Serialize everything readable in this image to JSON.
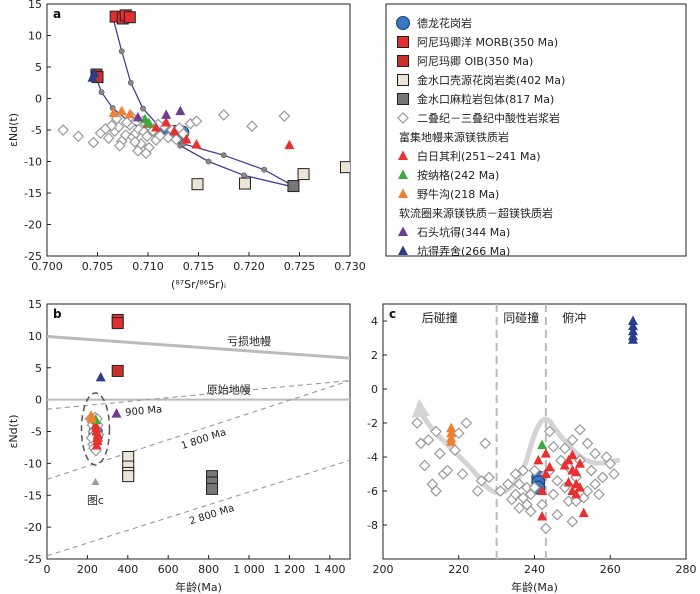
{
  "figure": {
    "colors": {
      "granite": "#3b78c4",
      "morb": "#e03030",
      "oib": "#c83228",
      "jinshuikou_crust": "#ece4d4",
      "jinshuikou_xenolith": "#777777",
      "diamond": "#999999",
      "red": "#e83030",
      "green": "#3cac3c",
      "orange": "#f08030",
      "purple": "#6e3c96",
      "navy": "#2c3c8c",
      "curve": "#4a3f94",
      "curve_dot": "#8a8a8a",
      "mantle_line": "#bbbbbb",
      "arrow": "#d4d4d4"
    }
  },
  "legend": {
    "items": [
      {
        "marker": "circle",
        "color": "#3b78c4",
        "label": "德龙花岗岩"
      },
      {
        "marker": "square",
        "color": "#e03030",
        "label": "阿尼玛卿洋 MORB(350 Ma)"
      },
      {
        "marker": "square",
        "color": "#c83228",
        "label": "阿尼玛卿 OIB(350 Ma)"
      },
      {
        "marker": "square",
        "color": "#ece4d4",
        "label": "金水口壳源花岗岩类(402 Ma)"
      },
      {
        "marker": "square",
        "color": "#777777",
        "label": "金水口麻粒岩包体(817 Ma)"
      },
      {
        "marker": "diamond",
        "color": "#999999",
        "label": "二叠纪－三叠纪中酸性岩浆岩"
      }
    ],
    "group1_title": "富集地幔来源镁铁质岩",
    "group1": [
      {
        "marker": "triangle",
        "color": "#e83030",
        "label": "白日其利(251~241 Ma)"
      },
      {
        "marker": "triangle",
        "color": "#3cac3c",
        "label": "按纳格(242 Ma)"
      },
      {
        "marker": "triangle",
        "color": "#f08030",
        "label": "野牛沟(218 Ma)"
      }
    ],
    "group2_title": "软流圈来源镁铁质－超镁铁质岩",
    "group2": [
      {
        "marker": "triangle",
        "color": "#6e3c96",
        "label": "石头坑得(344 Ma)"
      },
      {
        "marker": "triangle",
        "color": "#2c3c8c",
        "label": "坑得弄舍(266 Ma)"
      }
    ]
  },
  "chart_data": [
    {
      "panel": "a",
      "type": "scatter",
      "xlabel": "(⁸⁷Sr/⁸⁶Sr)ᵢ",
      "ylabel": "εNd(t)",
      "xlim": [
        0.7,
        0.73
      ],
      "ylim": [
        -25,
        15
      ],
      "xticks": [
        "0.700",
        "0.705",
        "0.710",
        "0.715",
        "0.720",
        "0.725",
        "0.730"
      ],
      "yticks": [
        "15",
        "10",
        "5",
        "0",
        "-5",
        "-10",
        "-15",
        "-20",
        "-25"
      ],
      "grid": false,
      "series": [
        {
          "name": "德龙花岗岩",
          "marker": "circle",
          "color": "#3b78c4",
          "x": [
            0.7115,
            0.7122,
            0.7127,
            0.713,
            0.7134
          ],
          "y": [
            -5.0,
            -5.6,
            -5.3,
            -5.8,
            -5.4
          ]
        },
        {
          "name": "阿尼玛卿洋 MORB(350 Ma)",
          "marker": "square",
          "color": "#e03030",
          "x": [
            0.7068,
            0.7075,
            0.7078,
            0.7082
          ],
          "y": [
            13.0,
            12.7,
            13.2,
            12.9
          ]
        },
        {
          "name": "阿尼玛卿 OIB(350 Ma)",
          "marker": "square",
          "color": "#c83228",
          "x": [
            0.7049,
            0.705
          ],
          "y": [
            3.8,
            3.4
          ]
        },
        {
          "name": "金水口壳源花岗岩类(402 Ma)",
          "marker": "square",
          "color": "#ece4d4",
          "x": [
            0.7149,
            0.7196,
            0.7254,
            0.7296
          ],
          "y": [
            -13.6,
            -13.5,
            -12.0,
            -10.9
          ]
        },
        {
          "name": "金水口麻粒岩包体(817 Ma)",
          "marker": "square",
          "color": "#777777",
          "x": [
            0.7244
          ],
          "y": [
            -13.9
          ]
        },
        {
          "name": "二叠纪－三叠纪中酸性岩浆岩",
          "marker": "diamond",
          "color": "#999999",
          "x": [
            0.7016,
            0.7031,
            0.7046,
            0.7053,
            0.7058,
            0.7061,
            0.7067,
            0.7071,
            0.7074,
            0.7078,
            0.7082,
            0.7085,
            0.7088,
            0.7091,
            0.7093,
            0.7096,
            0.7099,
            0.7102,
            0.7105,
            0.7108,
            0.7112,
            0.7116,
            0.712,
            0.7124,
            0.7128,
            0.7131,
            0.7135,
            0.7072,
            0.7079,
            0.7087,
            0.7095,
            0.7101,
            0.711,
            0.7064,
            0.709,
            0.7083,
            0.7098,
            0.7069,
            0.7142,
            0.7148,
            0.7175,
            0.7203,
            0.7235
          ],
          "y": [
            -5.0,
            -6.0,
            -7.0,
            -5.5,
            -4.8,
            -6.3,
            -5.2,
            -4.5,
            -6.8,
            -5.8,
            -4.2,
            -6.1,
            -5.5,
            -4.9,
            -7.2,
            -5.3,
            -6.0,
            -4.6,
            -5.1,
            -6.6,
            -5.9,
            -4.4,
            -6.2,
            -5.0,
            -6.5,
            -4.7,
            -5.6,
            -7.5,
            -3.8,
            -6.9,
            -3.6,
            -7.8,
            -4.1,
            -4.3,
            -8.3,
            -2.8,
            -8.7,
            -3.2,
            -4.0,
            -3.6,
            -2.6,
            -4.4,
            -2.8
          ]
        },
        {
          "name": "白日其利(251~241 Ma)",
          "marker": "triangle",
          "color": "#e83030",
          "x": [
            0.71,
            0.7108,
            0.7118,
            0.7126,
            0.7138,
            0.7148,
            0.724
          ],
          "y": [
            -4.0,
            -4.6,
            -3.8,
            -5.2,
            -6.5,
            -7.3,
            -7.4
          ]
        },
        {
          "name": "按纳格(242 Ma)",
          "marker": "triangle",
          "color": "#3cac3c",
          "x": [
            0.7097,
            0.7101
          ],
          "y": [
            -3.3,
            -3.9
          ]
        },
        {
          "name": "野牛沟(218 Ma)",
          "marker": "triangle",
          "color": "#f08030",
          "x": [
            0.7066,
            0.7074,
            0.7082
          ],
          "y": [
            -2.3,
            -2.0,
            -2.5
          ]
        },
        {
          "name": "石头坑得(344 Ma)",
          "marker": "triangle",
          "color": "#6e3c96",
          "x": [
            0.709,
            0.7118,
            0.7132
          ],
          "y": [
            -3.0,
            -2.6,
            -2.0
          ]
        },
        {
          "name": "坑得弄舍(266 Ma)",
          "marker": "triangle",
          "color": "#2c3c8c",
          "x": [
            0.7045,
            0.7047
          ],
          "y": [
            3.3,
            4.0
          ]
        }
      ],
      "curves": [
        {
          "x": [
            0.7065,
            0.7074,
            0.7083,
            0.7095,
            0.7112,
            0.7132,
            0.716,
            0.7195,
            0.724
          ],
          "y": [
            13.0,
            7.5,
            2.5,
            -1.6,
            -4.6,
            -7.5,
            -10.0,
            -12.2,
            -13.9
          ]
        },
        {
          "x": [
            0.7048,
            0.7054,
            0.7065,
            0.7082,
            0.7105,
            0.7135,
            0.7175,
            0.7215,
            0.7244
          ],
          "y": [
            3.6,
            1.0,
            -1.5,
            -3.8,
            -5.6,
            -7.2,
            -9.0,
            -11.3,
            -13.9
          ]
        }
      ],
      "curve_dots": [
        {
          "x": [
            0.7074,
            0.7083,
            0.7095,
            0.7112,
            0.7132,
            0.716,
            0.7195
          ],
          "y": [
            7.5,
            2.5,
            -1.6,
            -4.6,
            -7.5,
            -10.0,
            -12.2
          ]
        },
        {
          "x": [
            0.7054,
            0.7065,
            0.7082,
            0.7105,
            0.7135,
            0.7175,
            0.7215
          ],
          "y": [
            1.0,
            -1.5,
            -3.8,
            -5.6,
            -7.2,
            -9.0,
            -11.3
          ]
        }
      ]
    },
    {
      "panel": "b",
      "type": "scatter",
      "xlabel": "年龄(Ma)",
      "ylabel": "εNd(t)",
      "xlim": [
        0,
        1500
      ],
      "ylim": [
        -25,
        15
      ],
      "xticks": [
        "0",
        "200",
        "400",
        "600",
        "800",
        "1 000",
        "1 200",
        "1 400"
      ],
      "yticks": [
        "15",
        "10",
        "5",
        "0",
        "-5",
        "-10",
        "-15",
        "-20",
        "-25"
      ],
      "grid": false,
      "reference_lines": [
        {
          "label": "亏损地幔",
          "x": [
            0,
            1500
          ],
          "y": [
            9.9,
            6.5
          ]
        },
        {
          "label": "原始地幔",
          "x": [
            0,
            1500
          ],
          "y": [
            0,
            0
          ]
        }
      ],
      "model_age_lines": [
        {
          "label": "900 Ma",
          "x": [
            0,
            1500
          ],
          "y": [
            -1.5,
            3.0
          ]
        },
        {
          "label": "1 800 Ma",
          "x": [
            0,
            1500
          ],
          "y": [
            -12.5,
            3.0
          ]
        },
        {
          "label": "2 800 Ma",
          "x": [
            0,
            1500
          ],
          "y": [
            -24.5,
            -9.5
          ]
        }
      ],
      "annotation": "图c",
      "series": [
        {
          "name": "德龙花岗岩",
          "marker": "circle",
          "color": "#3b78c4",
          "x": [
            240,
            242,
            241
          ],
          "y": [
            -5.3,
            -5.7,
            -5.0
          ]
        },
        {
          "name": "阿尼玛卿洋 MORB(350 Ma)",
          "marker": "square",
          "color": "#e03030",
          "x": [
            350,
            350
          ],
          "y": [
            12.5,
            12.0
          ]
        },
        {
          "name": "阿尼玛卿 OIB(350 Ma)",
          "marker": "square",
          "color": "#c83228",
          "x": [
            350
          ],
          "y": [
            4.5
          ]
        },
        {
          "name": "金水口壳源花岗岩类(402 Ma)",
          "marker": "square",
          "color": "#ece4d4",
          "x": [
            402,
            402,
            402,
            402
          ],
          "y": [
            -9.0,
            -10.5,
            -11.5,
            -12.0
          ]
        },
        {
          "name": "金水口麻粒岩包体(817 Ma)",
          "marker": "square",
          "color": "#777777",
          "x": [
            817,
            817,
            817
          ],
          "y": [
            -12.0,
            -13.0,
            -14.0
          ]
        },
        {
          "name": "二叠纪－三叠纪中酸性岩浆岩",
          "marker": "diamond",
          "color": "#999999",
          "x": [
            215,
            225,
            230,
            235,
            240,
            245,
            250,
            255,
            228,
            238,
            248,
            220,
            232,
            252,
            242
          ],
          "y": [
            -3.0,
            -4.0,
            -5.0,
            -6.0,
            -3.5,
            -4.5,
            -6.5,
            -5.5,
            -7.0,
            -2.8,
            -3.0,
            -6.0,
            -7.6,
            -4.0,
            -8.0
          ]
        },
        {
          "name": "白日其利(251~241 Ma)",
          "marker": "triangle",
          "color": "#e83030",
          "x": [
            241,
            245,
            248,
            250,
            251,
            246,
            243
          ],
          "y": [
            -4.0,
            -5.0,
            -6.0,
            -6.5,
            -5.5,
            -7.2,
            -4.5
          ]
        },
        {
          "name": "按纳格(242 Ma)",
          "marker": "triangle",
          "color": "#3cac3c",
          "x": [
            242
          ],
          "y": [
            -3.2
          ]
        },
        {
          "name": "野牛沟(218 Ma)",
          "marker": "triangle",
          "color": "#f08030",
          "x": [
            218,
            220,
            222
          ],
          "y": [
            -2.5,
            -3.0,
            -2.8
          ]
        },
        {
          "name": "石头坑得(344 Ma)",
          "marker": "triangle",
          "color": "#6e3c96",
          "x": [
            344
          ],
          "y": [
            -2.2
          ]
        },
        {
          "name": "坑得弄舍(266 Ma)",
          "marker": "triangle",
          "color": "#2c3c8c",
          "x": [
            266
          ],
          "y": [
            3.5
          ]
        }
      ]
    },
    {
      "panel": "c",
      "type": "scatter",
      "xlabel": "年龄(Ma)",
      "ylabel": "",
      "xlim": [
        200,
        280
      ],
      "ylim": [
        -10,
        5
      ],
      "xticks": [
        "200",
        "220",
        "240",
        "260",
        "280"
      ],
      "yticks": [
        "4",
        "2",
        "0",
        "-2",
        "-4",
        "-6",
        "-8"
      ],
      "grid": false,
      "stage_labels": [
        "后碰撞",
        "同碰撞",
        "俯冲"
      ],
      "stage_boundaries": [
        230,
        243
      ],
      "series": [
        {
          "name": "德龙花岗岩",
          "marker": "circle",
          "color": "#3b78c4",
          "x": [
            241,
            241,
            241
          ],
          "y": [
            -5.2,
            -5.5,
            -5.8
          ]
        },
        {
          "name": "二叠纪－三叠纪中酸性岩浆岩",
          "marker": "diamond",
          "color": "#999999",
          "x": [
            209,
            210,
            211,
            212,
            213,
            214,
            214,
            215,
            216,
            217,
            219,
            220,
            221,
            222,
            225,
            226,
            227,
            228,
            231,
            233,
            234,
            235,
            235,
            236,
            236,
            237,
            237,
            238,
            238,
            239,
            239,
            240,
            240,
            242,
            243,
            243,
            244,
            244,
            245,
            245,
            246,
            246,
            247,
            248,
            248,
            249,
            249,
            250,
            250,
            251,
            251,
            252,
            252,
            253,
            254,
            254,
            255,
            256,
            256,
            257,
            258,
            259,
            260,
            261
          ],
          "y": [
            -2.0,
            -3.2,
            -4.5,
            -3.0,
            -5.6,
            -2.5,
            -6.0,
            -3.8,
            -5.0,
            -4.8,
            -3.6,
            -2.6,
            -5.0,
            -2.0,
            -6.0,
            -5.4,
            -3.2,
            -5.2,
            -6.0,
            -5.6,
            -6.5,
            -6.2,
            -5.0,
            -7.0,
            -5.6,
            -6.4,
            -4.8,
            -6.8,
            -5.8,
            -7.2,
            -6.2,
            -5.8,
            -4.8,
            -6.8,
            -5.0,
            -8.2,
            -2.5,
            -4.8,
            -6.2,
            -3.4,
            -5.4,
            -7.4,
            -4.2,
            -3.5,
            -5.8,
            -6.6,
            -4.6,
            -3.0,
            -7.8,
            -5.2,
            -6.6,
            -4.2,
            -2.4,
            -6.4,
            -3.2,
            -6.0,
            -4.8,
            -5.6,
            -3.8,
            -6.2,
            -5.2,
            -4.0,
            -4.4,
            -5.0
          ]
        },
        {
          "name": "白日其利(251~241 Ma)",
          "marker": "triangle",
          "color": "#e83030",
          "x": [
            241,
            242,
            242,
            243,
            243,
            244,
            248,
            249,
            249,
            250,
            250,
            250,
            251,
            251,
            251,
            252,
            252,
            253
          ],
          "y": [
            -4.2,
            -6.0,
            -7.5,
            -5.0,
            -3.8,
            -4.6,
            -4.5,
            -5.5,
            -4.2,
            -6.0,
            -4.8,
            -3.9,
            -5.6,
            -4.9,
            -6.2,
            -4.4,
            -5.8,
            -7.3
          ]
        },
        {
          "name": "按纳格(242 Ma)",
          "marker": "triangle",
          "color": "#3cac3c",
          "x": [
            242
          ],
          "y": [
            -3.3
          ]
        },
        {
          "name": "野牛沟(218 Ma)",
          "marker": "triangle",
          "color": "#f08030",
          "x": [
            218,
            218,
            218,
            218
          ],
          "y": [
            -2.3,
            -2.6,
            -2.9,
            -3.1
          ]
        },
        {
          "name": "坑得弄舍(266 Ma)",
          "marker": "triangle",
          "color": "#2c3c8c",
          "x": [
            266,
            266,
            266,
            266,
            266
          ],
          "y": [
            4.0,
            3.7,
            3.4,
            3.1,
            2.9
          ]
        }
      ],
      "trend_arrow": {
        "x": [
          262,
          254,
          246,
          243,
          240,
          237,
          232,
          228,
          224,
          218,
          213,
          210
        ],
        "y": [
          -4.2,
          -4.5,
          -2.6,
          -1.5,
          -2.5,
          -5.0,
          -6.2,
          -6.0,
          -4.8,
          -3.5,
          -2.4,
          -1.4
        ]
      }
    }
  ]
}
